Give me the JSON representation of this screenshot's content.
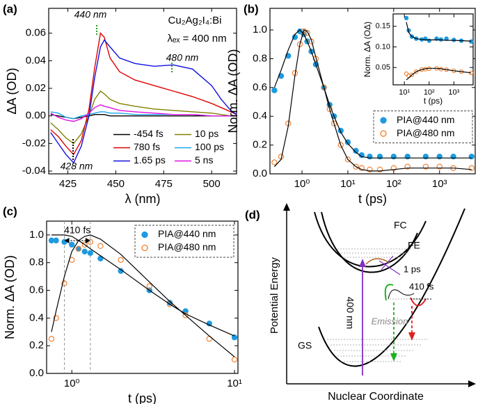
{
  "chart_data": [
    {
      "type": "line",
      "label": "(a)",
      "xlabel": "λ (nm)",
      "ylabel": "ΔA (OD)",
      "annotations": [
        "440 nm",
        "480 nm",
        "428 nm",
        "Cu₂Ag₂I₄:Bi",
        "λₑₓ = 400 nm"
      ],
      "xlim": [
        415,
        513
      ],
      "xticks": [
        425,
        450,
        475,
        500
      ],
      "ylim": [
        -0.042,
        0.078
      ],
      "yticks": [
        -0.04,
        -0.02,
        {
          "value": 0,
          "label": "0.00"
        },
        0.02,
        0.04,
        0.06
      ],
      "legend": "lower right",
      "x": [
        416,
        420,
        424,
        428,
        432,
        436,
        439,
        442,
        444,
        447,
        452,
        460,
        470,
        480,
        490,
        500,
        505,
        510,
        513
      ],
      "series": [
        {
          "name": "-454 fs",
          "color": "#000000",
          "marker": "line",
          "values": [
            0.001,
            0,
            -0.001,
            -0.002,
            -0.001,
            0,
            0.001,
            0.001,
            0.001,
            0,
            0,
            0,
            0,
            0,
            0,
            0,
            0,
            0,
            0
          ]
        },
        {
          "name": "10 ps",
          "color": "#808000",
          "marker": "line",
          "values": [
            -0.005,
            -0.01,
            -0.016,
            -0.02,
            -0.013,
            0.0,
            0.012,
            0.018,
            0.016,
            0.012,
            0.009,
            0.007,
            0.005,
            0.004,
            0.003,
            0.002,
            0.001,
            0.0,
            0.0
          ]
        },
        {
          "name": "780 fs",
          "color": "#e00000",
          "marker": "line",
          "values": [
            -0.01,
            -0.015,
            -0.022,
            -0.028,
            -0.018,
            0.005,
            0.035,
            0.06,
            0.057,
            0.042,
            0.032,
            0.026,
            0.022,
            0.018,
            0.014,
            0.009,
            0.006,
            0.003,
            0.001
          ]
        },
        {
          "name": "100 ps",
          "color": "#1ca8e8",
          "marker": "line",
          "values": [
            0.003,
            0.002,
            -0.001,
            -0.002,
            0.0,
            0.001,
            0.002,
            0.003,
            0.003,
            0.002,
            0.002,
            0.001,
            0.001,
            0.001,
            0.001,
            0.0,
            0.0,
            0.0,
            0.0
          ]
        },
        {
          "name": "1.65 ps",
          "color": "#1010e0",
          "marker": "line",
          "values": [
            -0.012,
            -0.02,
            -0.028,
            -0.034,
            -0.022,
            0.0,
            0.028,
            0.05,
            0.055,
            0.05,
            0.042,
            0.038,
            0.036,
            0.037,
            0.034,
            0.022,
            0.012,
            0.004,
            0.001
          ]
        },
        {
          "name": "5 ns",
          "color": "#e010e0",
          "marker": "line",
          "values": [
            0.002,
            -0.001,
            -0.003,
            -0.004,
            -0.002,
            0.002,
            0.006,
            0.008,
            0.007,
            0.006,
            0.004,
            0.003,
            0.002,
            0.001,
            0.001,
            0,
            0,
            0,
            0
          ]
        }
      ]
    },
    {
      "type": "scatter",
      "label": "(b)",
      "xlabel": "t (ps)",
      "ylabel": "Norm. ΔA (OD)",
      "xscale": "log",
      "xlim": [
        0.2,
        6000
      ],
      "xticks": [
        {
          "value": 1,
          "label": "10⁰"
        },
        {
          "value": 10,
          "label": "10¹"
        },
        {
          "value": 100,
          "label": "10²"
        },
        {
          "value": 1000,
          "label": "10³"
        }
      ],
      "ylim": [
        0,
        1.15
      ],
      "yticks": [
        {
          "value": 0,
          "label": "0.0"
        },
        0.2,
        0.4,
        0.6,
        0.8,
        {
          "value": 1,
          "label": "1.0"
        }
      ],
      "legend": "center right",
      "legend_frame": "dashed",
      "x": [
        0.25,
        0.35,
        0.5,
        0.7,
        0.9,
        1.1,
        1.3,
        1.6,
        2,
        3,
        4,
        5,
        7,
        10,
        15,
        20,
        30,
        50,
        100,
        200,
        500,
        1000,
        2000,
        5000
      ],
      "series": [
        {
          "name": "PIA@440 nm",
          "color": "#1e9be0",
          "marker": "filled",
          "values": [
            0.58,
            0.68,
            0.82,
            0.95,
            0.99,
            0.97,
            0.92,
            0.85,
            0.76,
            0.6,
            0.48,
            0.4,
            0.3,
            0.22,
            0.16,
            0.13,
            0.12,
            0.12,
            0.12,
            0.12,
            0.12,
            0.12,
            0.12,
            0.12
          ]
        },
        {
          "name": "PIA@480 nm",
          "color": "#f08030",
          "marker": "open",
          "values": [
            0.08,
            0.12,
            0.35,
            0.7,
            0.9,
            0.99,
            0.98,
            0.92,
            0.8,
            0.6,
            0.45,
            0.35,
            0.2,
            0.1,
            0.05,
            0.04,
            0.03,
            0.03,
            0.04,
            0.05,
            0.05,
            0.05,
            0.04,
            0.04
          ]
        },
        {
          "color": "#000000",
          "marker": "line",
          "values": [
            0.6,
            0.72,
            0.86,
            0.97,
            1.0,
            0.97,
            0.92,
            0.85,
            0.76,
            0.6,
            0.48,
            0.4,
            0.29,
            0.21,
            0.15,
            0.12,
            0.11,
            0.11,
            0.11,
            0.11,
            0.11,
            0.11,
            0.11,
            0.11
          ]
        },
        {
          "color": "#000000",
          "marker": "line",
          "values": [
            0.05,
            0.1,
            0.33,
            0.68,
            0.9,
            1.0,
            0.99,
            0.93,
            0.81,
            0.6,
            0.45,
            0.35,
            0.2,
            0.1,
            0.05,
            0.03,
            0.02,
            0.02,
            0.03,
            0.04,
            0.04,
            0.04,
            0.04,
            0.03
          ]
        }
      ],
      "inset": {
        "type": "scatter",
        "xlabel": "t (ps)",
        "ylabel": "Norm. ΔA (OΔ)",
        "xscale": "log",
        "xlim": [
          3.5,
          6000
        ],
        "xticks": [
          {
            "value": 10,
            "label": "10¹"
          },
          {
            "value": 100,
            "label": "10²"
          },
          {
            "value": 1000,
            "label": "10³"
          }
        ],
        "ylim": [
          0.008,
          0.18
        ],
        "yticks": [
          0.05,
          {
            "value": 0.1,
            "label": "0.10"
          },
          0.15
        ],
        "x": [
          12,
          15,
          20,
          30,
          50,
          70,
          100,
          200,
          300,
          500,
          1000,
          2000,
          5000
        ],
        "series": [
          {
            "color": "#1e9be0",
            "marker": "filled",
            "values": [
              0.17,
              0.14,
              0.125,
              0.12,
              0.118,
              0.12,
              0.115,
              0.12,
              0.118,
              0.12,
              0.117,
              0.115,
              0.113
            ]
          },
          {
            "color": "#f08030",
            "marker": "open",
            "values": [
              0.035,
              0.03,
              0.032,
              0.04,
              0.045,
              0.046,
              0.047,
              0.048,
              0.046,
              0.045,
              0.042,
              0.04,
              0.037
            ]
          },
          {
            "color": "#000000",
            "marker": "line",
            "values": [
              0.16,
              0.135,
              0.125,
              0.12,
              0.118,
              0.117,
              0.117,
              0.117,
              0.117,
              0.116,
              0.116,
              0.115,
              0.114
            ]
          },
          {
            "color": "#000000",
            "marker": "line",
            "values": [
              0.02,
              0.025,
              0.032,
              0.04,
              0.045,
              0.047,
              0.048,
              0.048,
              0.047,
              0.045,
              0.042,
              0.04,
              0.037
            ]
          }
        ]
      }
    },
    {
      "type": "scatter",
      "label": "(c)",
      "xlabel": "t (ps)",
      "ylabel": "Norm. ΔA (OD)",
      "xscale": "log",
      "annotations": [
        "410 fs"
      ],
      "vlines": [
        0.9,
        1.3
      ],
      "xlim": [
        0.7,
        10.5
      ],
      "xticks": [
        {
          "value": 1,
          "label": "10⁰"
        },
        {
          "value": 10,
          "label": "10¹"
        }
      ],
      "ylim": [
        0,
        1.1
      ],
      "yticks": [
        {
          "value": 0,
          "label": "0.0"
        },
        0.2,
        0.4,
        0.6,
        0.8,
        {
          "value": 1,
          "label": "1.0"
        }
      ],
      "legend": "upper right",
      "legend_frame": "dashed",
      "x": [
        0.75,
        0.8,
        0.9,
        1.0,
        1.1,
        1.2,
        1.3,
        1.5,
        2,
        3,
        4,
        5,
        7,
        10
      ],
      "series": [
        {
          "name": "PIA@440 nm",
          "color": "#1e9be0",
          "marker": "filled",
          "values": [
            0.96,
            0.96,
            0.95,
            0.93,
            0.9,
            0.88,
            0.87,
            0.83,
            0.74,
            0.6,
            0.51,
            0.45,
            0.36,
            0.26
          ]
        },
        {
          "name": "PIA@480 nm",
          "color": "#f08030",
          "marker": "open",
          "values": [
            0.25,
            0.4,
            0.65,
            0.82,
            0.9,
            0.93,
            0.95,
            0.92,
            0.82,
            0.63,
            0.5,
            0.42,
            0.25,
            0.1
          ]
        },
        {
          "color": "#000000",
          "marker": "line",
          "values": [
            1.0,
            1.0,
            1.0,
            0.99,
            0.96,
            0.93,
            0.9,
            0.85,
            0.75,
            0.6,
            0.5,
            0.43,
            0.35,
            0.27
          ]
        },
        {
          "color": "#000000",
          "marker": "line",
          "values": [
            0.3,
            0.45,
            0.7,
            0.88,
            0.96,
            0.99,
            1.0,
            0.97,
            0.86,
            0.66,
            0.52,
            0.42,
            0.27,
            0.12
          ]
        }
      ]
    }
  ],
  "diagram": {
    "label": "(d)",
    "y_axis": "Potential Energy",
    "x_axis": "Nuclear Coordinate",
    "labels": {
      "fc": "FC",
      "fe": "FE",
      "transfer": "1 ps",
      "relax": "410 fs",
      "excitation": "400 nm",
      "emission": "Emission",
      "gs": "GS"
    }
  }
}
